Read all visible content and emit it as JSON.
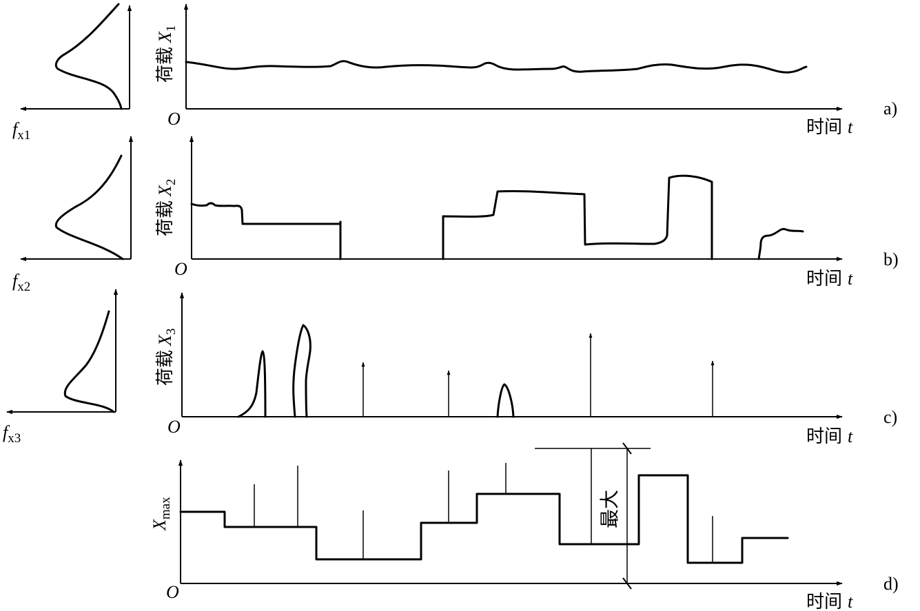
{
  "panels": [
    {
      "tag": "a)",
      "ylabel_cn": "荷载",
      "ylabel_sym": "X",
      "ylabel_sub": "1",
      "dist_sym": "f",
      "dist_sub": "x1",
      "origin": "O",
      "xlabel_cn": "时间",
      "xlabel_sym": "t"
    },
    {
      "tag": "b)",
      "ylabel_cn": "荷载",
      "ylabel_sym": "X",
      "ylabel_sub": "2",
      "dist_sym": "f",
      "dist_sub": "x2",
      "origin": "O",
      "xlabel_cn": "时间",
      "xlabel_sym": "t"
    },
    {
      "tag": "c)",
      "ylabel_cn": "荷载",
      "ylabel_sym": "X",
      "ylabel_sub": "3",
      "dist_sym": "f",
      "dist_sub": "x3",
      "origin": "O",
      "xlabel_cn": "时间",
      "xlabel_sym": "t"
    },
    {
      "tag": "d)",
      "ylabel_sym": "X",
      "ylabel_sub": "max",
      "max_label": "最大",
      "origin": "O",
      "xlabel_cn": "时间",
      "xlabel_sym": "t"
    }
  ]
}
